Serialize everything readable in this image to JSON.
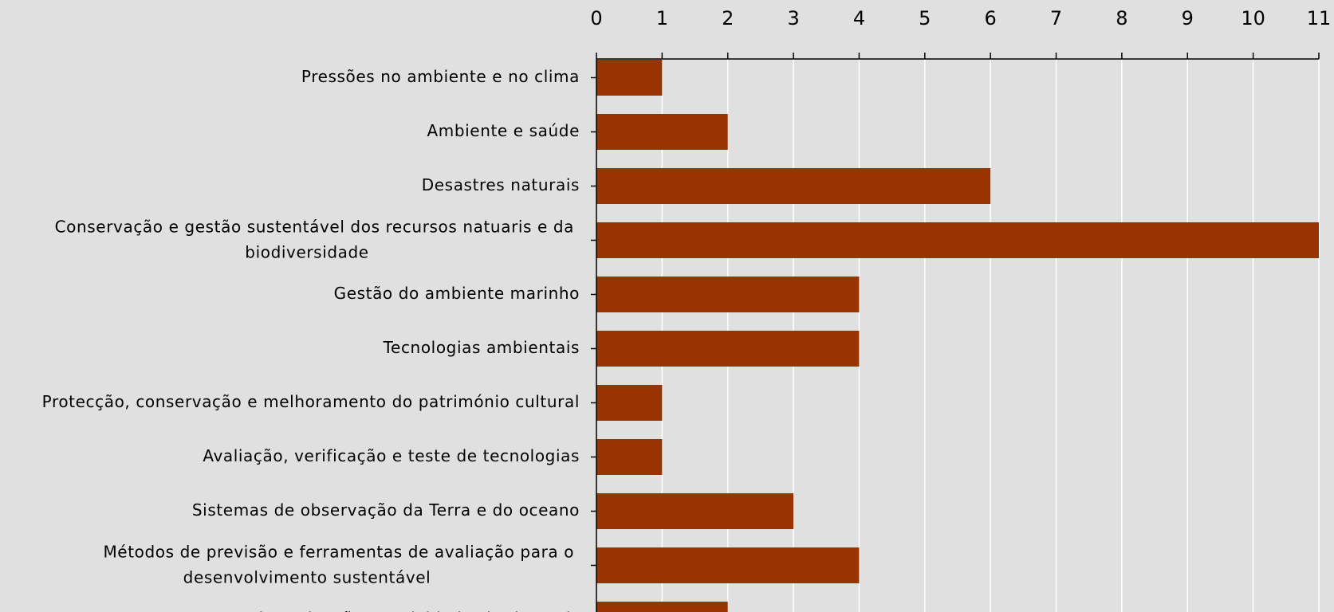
{
  "chart_data": {
    "type": "barh",
    "categories": [
      "Pressões no ambiente e no clima",
      "Ambiente e saúde",
      "Desastres naturais",
      "Conservação e gestão sustentável dos recursos natuaris e da biodiversidade",
      "Gestão do ambiente marinho",
      "Tecnologias ambientais",
      "Protecção, conservação e melhoramento do património cultural",
      "Avaliação, verificação e teste de tecnologias",
      "Sistemas de observação da Terra e do oceano",
      "Métodos de previsão e ferramentas de avaliação para o desenvolvimento sustentável",
      "Disseminação e actividades horizontais"
    ],
    "values": [
      1,
      2,
      6,
      11,
      4,
      4,
      1,
      1,
      3,
      4,
      2
    ],
    "color": "#993300",
    "xlim": [
      0,
      11
    ],
    "xticks": [
      0,
      1,
      2,
      3,
      4,
      5,
      6,
      7,
      8,
      9,
      10,
      11
    ],
    "grid": true
  }
}
